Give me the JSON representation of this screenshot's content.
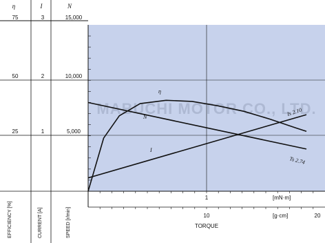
{
  "chart_data": {
    "type": "line",
    "xlabel": "TORQUE",
    "x_units": [
      "[mN·m]",
      "[g·cm]"
    ],
    "x_tick_labels_mNm": [
      "1",
      "10"
    ],
    "x_tick_labels_gcm": [
      "10",
      "20"
    ],
    "y_axes": [
      {
        "symbol": "η",
        "label": "EFFICIENCY [%]",
        "ticks": [
          "75",
          "50",
          "25"
        ]
      },
      {
        "symbol": "I",
        "label": "CURRENT [A]",
        "ticks": [
          "3",
          "2",
          "1"
        ]
      },
      {
        "symbol": "N",
        "label": "SPEED [r/min]",
        "ticks": [
          "15,000",
          "10,000",
          "5,000"
        ]
      }
    ],
    "speed_range": [
      0,
      15000
    ],
    "series": [
      {
        "name": "η",
        "x": [
          0.0,
          0.15,
          0.3,
          0.5,
          0.75,
          1.0,
          1.25,
          1.5,
          1.75,
          2.0,
          2.1
        ],
        "y": [
          0,
          4800,
          6800,
          7900,
          8200,
          8100,
          7700,
          7200,
          6500,
          5700,
          5400
        ]
      },
      {
        "name": "N",
        "x": [
          0.0,
          2.1
        ],
        "y": [
          8000,
          3800
        ]
      },
      {
        "name": "I",
        "x": [
          0.0,
          2.1
        ],
        "y": [
          1200,
          6900
        ]
      }
    ],
    "annotations": [
      "Is 2.10",
      "Ts 2.74"
    ],
    "watermark": "MABUCHI MOTOR CO., LTD."
  }
}
